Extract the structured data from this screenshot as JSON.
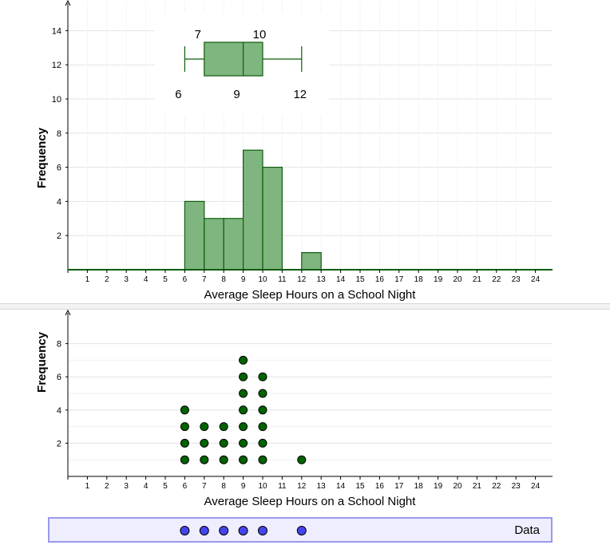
{
  "chart_data": [
    {
      "type": "bar",
      "subtype": "histogram",
      "xlabel": "Average Sleep Hours on a School Night",
      "ylabel": "Frequency",
      "x_ticks": [
        1,
        2,
        3,
        4,
        5,
        6,
        7,
        8,
        9,
        10,
        11,
        12,
        13,
        14,
        15,
        16,
        17,
        18,
        19,
        20,
        21,
        22,
        23,
        24
      ],
      "y_ticks": [
        2,
        4,
        6,
        8,
        10,
        12,
        14
      ],
      "xlim": [
        0,
        24.4
      ],
      "ylim": [
        0,
        15
      ],
      "grid": true,
      "bins": [
        {
          "start": 6,
          "end": 7,
          "count": 4
        },
        {
          "start": 7,
          "end": 8,
          "count": 3
        },
        {
          "start": 8,
          "end": 9,
          "count": 3
        },
        {
          "start": 9,
          "end": 10,
          "count": 7
        },
        {
          "start": 10,
          "end": 11,
          "count": 6
        },
        {
          "start": 11,
          "end": 12,
          "count": 0
        },
        {
          "start": 12,
          "end": 13,
          "count": 1
        }
      ],
      "color": "#7fb57f",
      "boxplot": {
        "min": 6,
        "q1": 7,
        "median": 9,
        "q3": 10,
        "max": 12,
        "labels": {
          "min": "6",
          "q1": "7",
          "median": "9",
          "q3": "10",
          "max": "12"
        }
      }
    },
    {
      "type": "scatter",
      "subtype": "dot-plot",
      "xlabel": "Average Sleep Hours on a School Night",
      "ylabel": "Frequency",
      "x_ticks": [
        1,
        2,
        3,
        4,
        5,
        6,
        7,
        8,
        9,
        10,
        11,
        12,
        13,
        14,
        15,
        16,
        17,
        18,
        19,
        20,
        21,
        22,
        23,
        24
      ],
      "y_ticks": [
        2,
        4,
        6,
        8
      ],
      "xlim": [
        0,
        24.4
      ],
      "ylim": [
        0,
        9
      ],
      "grid": true,
      "points": [
        {
          "x": 6,
          "count": 4
        },
        {
          "x": 7,
          "count": 3
        },
        {
          "x": 8,
          "count": 3
        },
        {
          "x": 9,
          "count": 7
        },
        {
          "x": 10,
          "count": 6
        },
        {
          "x": 12,
          "count": 1
        }
      ],
      "color": "#006400"
    }
  ],
  "data_slider": {
    "label": "Data",
    "points_x": [
      6,
      7,
      8,
      9,
      10,
      12
    ],
    "color": "#4444ee"
  }
}
